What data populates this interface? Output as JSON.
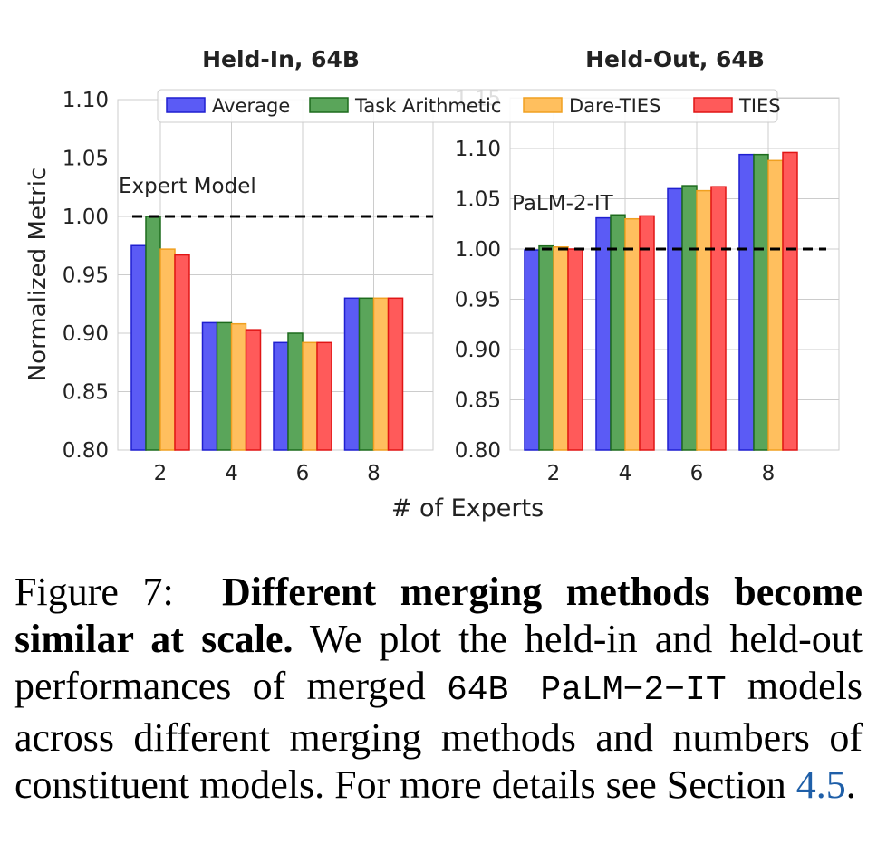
{
  "chart_data": [
    {
      "type": "bar",
      "title": "Held-In, 64B",
      "ylabel": "Normalized Metric",
      "xlabel": "# of Experts",
      "categories": [
        "2",
        "4",
        "6",
        "8"
      ],
      "ylim": [
        0.8,
        1.1
      ],
      "yticks": [
        "0.80",
        "0.85",
        "0.90",
        "0.95",
        "1.00",
        "1.05",
        "1.10"
      ],
      "reference_line": {
        "label": "Expert Model",
        "value": 1.0
      },
      "series": [
        {
          "name": "Average",
          "values": [
            0.975,
            0.909,
            0.892,
            0.93
          ]
        },
        {
          "name": "Task Arithmetic",
          "values": [
            1.0,
            0.909,
            0.9,
            0.93
          ]
        },
        {
          "name": "Dare-TIES",
          "values": [
            0.972,
            0.908,
            0.892,
            0.93
          ]
        },
        {
          "name": "TIES",
          "values": [
            0.967,
            0.903,
            0.892,
            0.93
          ]
        }
      ],
      "grid": true
    },
    {
      "type": "bar",
      "title": "Held-Out, 64B",
      "xlabel": "# of Experts",
      "categories": [
        "2",
        "4",
        "6",
        "8"
      ],
      "ylim": [
        0.8,
        1.1
      ],
      "yticks": [
        "0.80",
        "0.85",
        "0.90",
        "0.95",
        "1.00",
        "1.05",
        "1.10"
      ],
      "top_tick_partial": "1.15",
      "reference_line": {
        "label": "PaLM-2-IT",
        "value": 1.0
      },
      "series": [
        {
          "name": "Average",
          "values": [
            0.999,
            1.031,
            1.06,
            1.094
          ]
        },
        {
          "name": "Task Arithmetic",
          "values": [
            1.003,
            1.034,
            1.063,
            1.094
          ]
        },
        {
          "name": "Dare-TIES",
          "values": [
            1.002,
            1.03,
            1.058,
            1.088
          ]
        },
        {
          "name": "TIES",
          "values": [
            1.0,
            1.033,
            1.062,
            1.096
          ]
        }
      ],
      "grid": true
    }
  ],
  "legend": {
    "placement": "top",
    "entries": [
      "Average",
      "Task Arithmetic",
      "Dare-TIES",
      "TIES"
    ]
  },
  "colors": {
    "Average": {
      "fill": "#5b5bf5",
      "stroke": "#1f1fd0"
    },
    "Task Arithmetic": {
      "fill": "#5aa55a",
      "stroke": "#1d6b1d"
    },
    "Dare-TIES": {
      "fill": "#ffbf5e",
      "stroke": "#f0a020"
    },
    "TIES": {
      "fill": "#ff5a5a",
      "stroke": "#e01515"
    }
  },
  "caption": {
    "prefix": "Figure 7:",
    "bold": "Different merging methods become similar at scale.",
    "text1": "We plot the held-in and held-out performances of merged",
    "mono": "64B PaLM−2−IT",
    "text2": "models across different merging methods and numbers of constituent models. For more details see Section",
    "ref": "4.5",
    "end": "."
  }
}
